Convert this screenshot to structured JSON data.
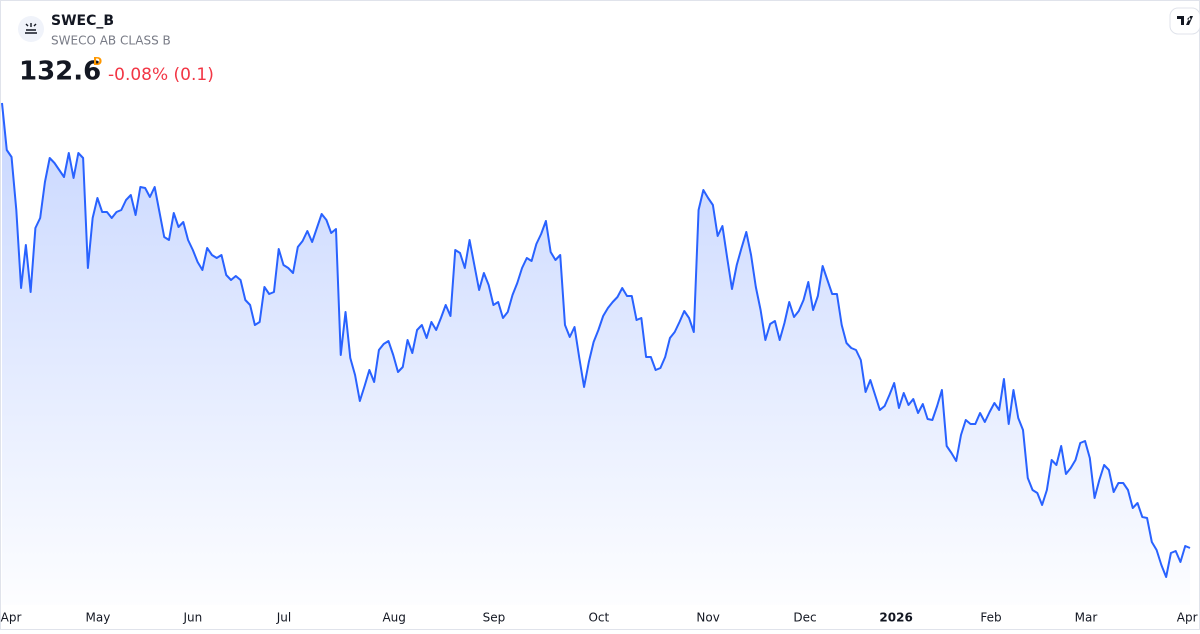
{
  "header": {
    "symbol": "SWEC_B",
    "name": "SWECO AB CLASS B",
    "price": "132.6",
    "interval": "D",
    "change": "-0.08% (0.1)"
  },
  "chart_data": {
    "type": "area",
    "color": "#2962ff",
    "ylim": [
      127.4,
      177.9
    ],
    "xlim": [
      0,
      249
    ],
    "xticks": [
      {
        "value": 1.9,
        "label": "Apr"
      },
      {
        "value": 20.1,
        "label": "May"
      },
      {
        "value": 40.0,
        "label": "Jun"
      },
      {
        "value": 59.1,
        "label": "Jul"
      },
      {
        "value": 82.2,
        "label": "Aug"
      },
      {
        "value": 103.1,
        "label": "Sep"
      },
      {
        "value": 125.1,
        "label": "Oct"
      },
      {
        "value": 148.0,
        "label": "Nov"
      },
      {
        "value": 168.3,
        "label": "Dec"
      },
      {
        "value": 187.4,
        "label": "2026",
        "bold": true
      },
      {
        "value": 207.3,
        "label": "Feb"
      },
      {
        "value": 227.2,
        "label": "Mar"
      },
      {
        "value": 248.4,
        "label": "Apr"
      }
    ],
    "values": [
      177.1,
      172.4,
      171.7,
      166.4,
      158.6,
      162.9,
      158.2,
      164.6,
      165.6,
      169.2,
      171.6,
      171.1,
      170.4,
      169.7,
      172.1,
      169.6,
      172.1,
      171.6,
      160.6,
      165.6,
      167.6,
      166.2,
      166.2,
      165.6,
      166.2,
      166.4,
      167.4,
      167.9,
      165.9,
      168.7,
      168.6,
      167.7,
      168.7,
      166.2,
      163.7,
      163.4,
      166.1,
      164.7,
      165.2,
      163.4,
      162.4,
      161.2,
      160.4,
      162.6,
      161.9,
      161.6,
      161.9,
      159.9,
      159.4,
      159.8,
      159.4,
      157.4,
      156.9,
      154.9,
      155.2,
      158.7,
      158.0,
      158.2,
      162.5,
      160.9,
      160.6,
      160.1,
      162.7,
      163.3,
      164.3,
      163.2,
      164.6,
      166.0,
      165.4,
      164.1,
      164.5,
      151.9,
      156.2,
      151.6,
      149.9,
      147.3,
      148.8,
      150.4,
      149.2,
      152.4,
      153.0,
      153.3,
      151.9,
      150.2,
      150.7,
      153.4,
      152.1,
      154.4,
      154.9,
      153.6,
      155.2,
      154.4,
      155.6,
      156.9,
      155.8,
      162.4,
      162.1,
      160.6,
      163.4,
      160.9,
      158.4,
      160.1,
      158.9,
      156.9,
      157.2,
      155.6,
      156.2,
      157.9,
      159.1,
      160.6,
      161.6,
      161.3,
      163.0,
      164.0,
      165.3,
      162.2,
      161.4,
      161.9,
      154.9,
      153.7,
      154.7,
      151.6,
      148.7,
      151.2,
      153.2,
      154.4,
      155.8,
      156.6,
      157.2,
      157.7,
      158.6,
      157.8,
      157.8,
      155.4,
      155.6,
      151.7,
      151.7,
      150.4,
      150.6,
      151.7,
      153.6,
      154.2,
      155.2,
      156.3,
      155.6,
      154.2,
      166.4,
      168.4,
      167.6,
      166.9,
      163.8,
      164.8,
      161.6,
      158.5,
      160.9,
      162.6,
      164.2,
      161.9,
      158.7,
      156.4,
      153.4,
      155.0,
      155.3,
      153.4,
      155.1,
      157.2,
      155.7,
      156.3,
      157.4,
      159.2,
      156.4,
      157.8,
      160.8,
      159.4,
      158.0,
      158.0,
      154.9,
      153.1,
      152.6,
      152.4,
      151.4,
      148.2,
      149.4,
      147.9,
      146.4,
      146.8,
      147.9,
      149.1,
      146.6,
      148.1,
      146.9,
      147.5,
      146.1,
      147.0,
      145.5,
      145.4,
      146.8,
      148.4,
      142.8,
      142.1,
      141.3,
      143.9,
      145.4,
      145.0,
      145.0,
      146.1,
      145.2,
      146.2,
      147.1,
      146.4,
      149.5,
      145.0,
      148.4,
      145.6,
      144.4,
      139.6,
      138.4,
      138.1,
      136.9,
      138.4,
      141.4,
      140.9,
      142.8,
      140.0,
      140.6,
      141.4,
      143.1,
      143.3,
      141.6,
      137.6,
      139.4,
      140.9,
      140.4,
      138.2,
      139.1,
      139.1,
      138.4,
      136.6,
      137.1,
      135.7,
      135.6,
      133.2,
      132.4,
      130.9,
      129.7,
      132.1,
      132.3,
      131.2,
      132.8,
      132.6
    ]
  }
}
